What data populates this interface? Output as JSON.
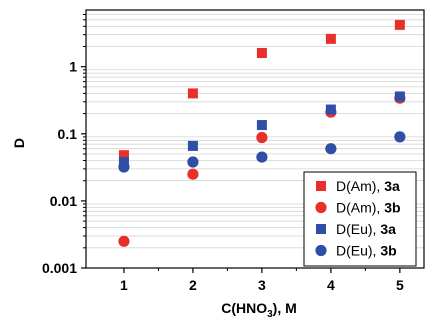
{
  "chart_data": {
    "type": "scatter",
    "xlabel": "C(HNO₃), M",
    "ylabel": "D",
    "xlim": [
      0.45,
      5.35
    ],
    "ylim": [
      0.001,
      7
    ],
    "yscale": "log",
    "grid": "horizontal minor",
    "legend_position": "bottom-right",
    "x_ticks": [
      "1",
      "2",
      "3",
      "4",
      "5"
    ],
    "y_ticks": [
      "0.001",
      "0.01",
      "0.1",
      "1"
    ],
    "series": [
      {
        "name_prefix": "D(Am), ",
        "name_bold": "3a",
        "marker": "square",
        "color": "#e8302a",
        "x": [
          1,
          2,
          3,
          4,
          5
        ],
        "y": [
          0.048,
          0.4,
          1.6,
          2.6,
          4.2
        ]
      },
      {
        "name_prefix": "D(Am), ",
        "name_bold": "3b",
        "marker": "circle",
        "color": "#e8302a",
        "x": [
          1,
          2,
          3,
          4,
          5
        ],
        "y": [
          0.0025,
          0.025,
          0.088,
          0.21,
          0.34
        ]
      },
      {
        "name_prefix": "D(Eu), ",
        "name_bold": "3a",
        "marker": "square",
        "color": "#2f4ea5",
        "x": [
          1,
          2,
          3,
          4,
          5
        ],
        "y": [
          0.038,
          0.066,
          0.135,
          0.23,
          0.36
        ]
      },
      {
        "name_prefix": "D(Eu), ",
        "name_bold": "3b",
        "marker": "circle",
        "color": "#2f4ea5",
        "x": [
          1,
          2,
          3,
          4,
          5
        ],
        "y": [
          0.032,
          0.038,
          0.045,
          0.06,
          0.09
        ]
      }
    ]
  }
}
